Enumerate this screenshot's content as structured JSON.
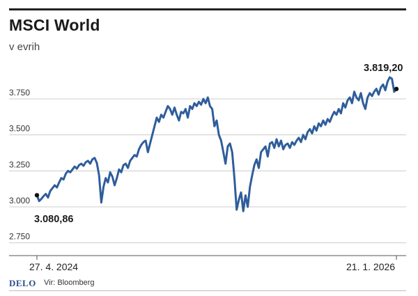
{
  "title": "MSCI World",
  "subtitle": "v evrih",
  "footer": {
    "logo": "DELO",
    "source": "Vir: Bloomberg"
  },
  "colors": {
    "line": "#2f5d9b",
    "grid": "#cccccc",
    "marker": "#111111"
  },
  "chart_data": {
    "type": "line",
    "title": "MSCI World",
    "subtitle": "v evrih",
    "x_start_label": "27. 4. 2024",
    "x_end_label": "21. 1. 2026",
    "yticks": [
      2750,
      3000,
      3250,
      3500,
      3750
    ],
    "ytick_labels": [
      "2.750",
      "3.000",
      "3.250",
      "3.500",
      "3.750"
    ],
    "ylim": [
      2700,
      3950
    ],
    "grid": "horizontal",
    "start_value": 3080.86,
    "start_label": "3.080,86",
    "end_value": 3819.2,
    "end_label": "3.819,20",
    "series": [
      {
        "values": [
          3080.86,
          3040,
          3055,
          3075,
          3090,
          3065,
          3110,
          3130,
          3150,
          3135,
          3170,
          3200,
          3190,
          3230,
          3250,
          3240,
          3260,
          3280,
          3265,
          3290,
          3300,
          3285,
          3310,
          3320,
          3300,
          3330,
          3340,
          3305,
          3220,
          3030,
          3140,
          3200,
          3170,
          3240,
          3210,
          3150,
          3200,
          3260,
          3240,
          3290,
          3300,
          3270,
          3320,
          3340,
          3360,
          3350,
          3400,
          3430,
          3450,
          3460,
          3380,
          3440,
          3500,
          3560,
          3620,
          3590,
          3640,
          3620,
          3660,
          3700,
          3680,
          3640,
          3690,
          3640,
          3600,
          3660,
          3650,
          3680,
          3620,
          3700,
          3680,
          3720,
          3700,
          3730,
          3710,
          3750,
          3720,
          3760,
          3700,
          3680,
          3560,
          3600,
          3500,
          3460,
          3380,
          3300,
          3420,
          3440,
          3380,
          3200,
          2980,
          3050,
          3100,
          2970,
          3080,
          3000,
          3140,
          3220,
          3290,
          3330,
          3270,
          3380,
          3400,
          3420,
          3350,
          3440,
          3450,
          3410,
          3470,
          3420,
          3460,
          3400,
          3430,
          3440,
          3410,
          3450,
          3430,
          3460,
          3480,
          3450,
          3500,
          3470,
          3520,
          3540,
          3510,
          3560,
          3530,
          3580,
          3560,
          3600,
          3570,
          3610,
          3590,
          3630,
          3660,
          3640,
          3680,
          3650,
          3720,
          3690,
          3740,
          3760,
          3720,
          3800,
          3760,
          3740,
          3790,
          3720,
          3680,
          3760,
          3790,
          3770,
          3800,
          3820,
          3780,
          3830,
          3850,
          3810,
          3870,
          3900,
          3890,
          3800,
          3819.2
        ]
      }
    ]
  }
}
